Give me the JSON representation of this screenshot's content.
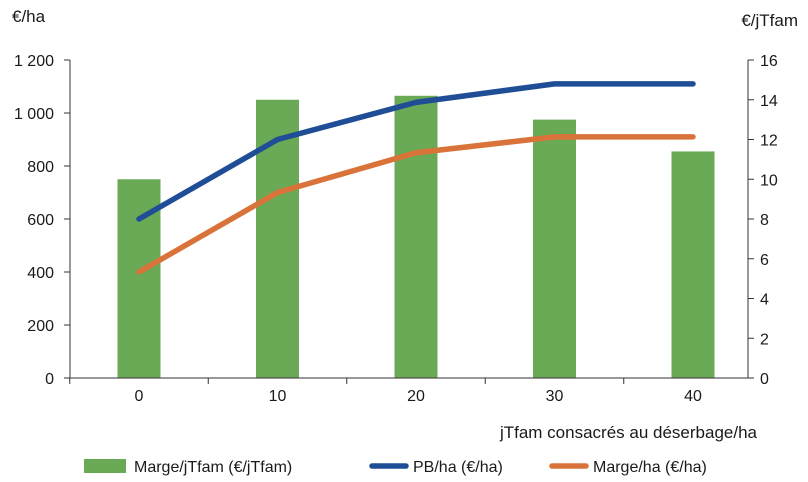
{
  "chart_data": {
    "type": "bar",
    "categories": [
      "0",
      "10",
      "20",
      "30",
      "40"
    ],
    "xlabel": "jTfam consacrés au déserbage/ha",
    "left_axis": {
      "label": "€/ha",
      "ylim": [
        0,
        1200
      ],
      "ticks": [
        "0",
        "200",
        "400",
        "600",
        "800",
        "1 000",
        "1 200"
      ],
      "tick_values": [
        0,
        200,
        400,
        600,
        800,
        1000,
        1200
      ]
    },
    "right_axis": {
      "label": "€/jTfam",
      "ylim": [
        0,
        16
      ],
      "ticks": [
        "0",
        "2",
        "4",
        "6",
        "8",
        "10",
        "12",
        "14",
        "16"
      ],
      "tick_values": [
        0,
        2,
        4,
        6,
        8,
        10,
        12,
        14,
        16
      ]
    },
    "series": [
      {
        "name": "Marge/jTfam (€/jTfam)",
        "type": "bar",
        "axis": "right",
        "color": "#6aaa57",
        "values": [
          10,
          14,
          14.2,
          13,
          11.4
        ]
      },
      {
        "name": "PB/ha (€/ha)",
        "type": "line",
        "axis": "left",
        "color": "#1f4e96",
        "values": [
          600,
          900,
          1040,
          1110,
          1110
        ]
      },
      {
        "name": "Marge/ha (€/ha)",
        "type": "line",
        "axis": "left",
        "color": "#d9733a",
        "values": [
          400,
          700,
          850,
          910,
          910
        ]
      }
    ],
    "grid": false,
    "legend_position": "bottom"
  }
}
